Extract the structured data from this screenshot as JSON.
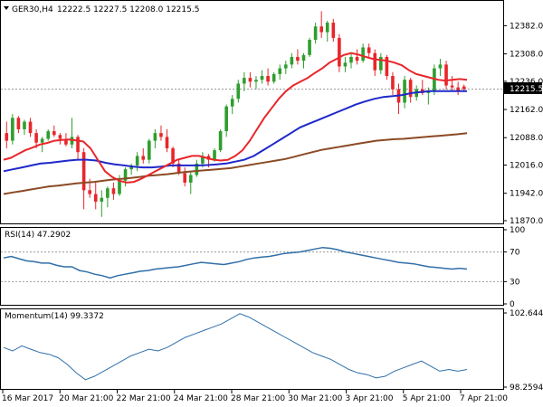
{
  "chart_data": {
    "instrument": "GER30,H4",
    "ohlc_text": "12222.5 12227.5 12208.0 12215.5",
    "current_price_label": "12215.5",
    "price_axis": {
      "ylim": [
        11870,
        12440
      ],
      "ticks": [
        "12382.0",
        "12308.0",
        "12236.0",
        "12162.0",
        "12088.0",
        "12016.0",
        "11942.0",
        "11870.0"
      ]
    },
    "x_labels": [
      "16 Mar 2017",
      "20 Mar 21:00",
      "22 Mar 21:00",
      "24 Mar 21:00",
      "28 Mar 21:00",
      "30 Mar 21:00",
      "3 Apr 21:00",
      "5 Apr 21:00",
      "7 Apr 21:00"
    ],
    "candles": [
      [
        12100,
        12130,
        12060,
        12080
      ],
      [
        12080,
        12150,
        12070,
        12140
      ],
      [
        12140,
        12145,
        12100,
        12110
      ],
      [
        12110,
        12135,
        12095,
        12130
      ],
      [
        12130,
        12140,
        12090,
        12100
      ],
      [
        12100,
        12110,
        12060,
        12075
      ],
      [
        12075,
        12090,
        12050,
        12085
      ],
      [
        12085,
        12110,
        12080,
        12105
      ],
      [
        12105,
        12120,
        12090,
        12095
      ],
      [
        12095,
        12100,
        12070,
        12085
      ],
      [
        12085,
        12100,
        12065,
        12070
      ],
      [
        12070,
        12140,
        12060,
        12090
      ],
      [
        12090,
        12095,
        12030,
        12050
      ],
      [
        12050,
        12060,
        11900,
        11950
      ],
      [
        11950,
        11980,
        11930,
        11940
      ],
      [
        11940,
        11970,
        11900,
        11920
      ],
      [
        11920,
        11950,
        11880,
        11930
      ],
      [
        11930,
        11960,
        11905,
        11955
      ],
      [
        11955,
        11970,
        11925,
        11940
      ],
      [
        11940,
        11990,
        11935,
        11975
      ],
      [
        11975,
        12010,
        11960,
        12005
      ],
      [
        12005,
        12020,
        11990,
        12015
      ],
      [
        12015,
        12050,
        12000,
        12040
      ],
      [
        12040,
        12060,
        12020,
        12030
      ],
      [
        12030,
        12085,
        12020,
        12080
      ],
      [
        12080,
        12110,
        12060,
        12100
      ],
      [
        12100,
        12120,
        12080,
        12090
      ],
      [
        12090,
        12110,
        12050,
        12060
      ],
      [
        12060,
        12065,
        12010,
        12020
      ],
      [
        12020,
        12030,
        11990,
        11995
      ],
      [
        11995,
        12010,
        11960,
        11970
      ],
      [
        11970,
        12000,
        11940,
        11990
      ],
      [
        11990,
        12030,
        11985,
        12020
      ],
      [
        12020,
        12050,
        12010,
        12040
      ],
      [
        12040,
        12045,
        12010,
        12030
      ],
      [
        12030,
        12060,
        12025,
        12055
      ],
      [
        12055,
        12110,
        12050,
        12105
      ],
      [
        12105,
        12175,
        12090,
        12170
      ],
      [
        12170,
        12200,
        12150,
        12190
      ],
      [
        12190,
        12240,
        12180,
        12230
      ],
      [
        12230,
        12260,
        12210,
        12245
      ],
      [
        12245,
        12260,
        12220,
        12235
      ],
      [
        12235,
        12250,
        12215,
        12240
      ],
      [
        12240,
        12265,
        12230,
        12250
      ],
      [
        12250,
        12270,
        12225,
        12235
      ],
      [
        12235,
        12260,
        12230,
        12255
      ],
      [
        12255,
        12280,
        12240,
        12270
      ],
      [
        12270,
        12290,
        12255,
        12280
      ],
      [
        12280,
        12310,
        12270,
        12300
      ],
      [
        12300,
        12320,
        12280,
        12290
      ],
      [
        12290,
        12310,
        12270,
        12305
      ],
      [
        12305,
        12350,
        12300,
        12345
      ],
      [
        12345,
        12390,
        12335,
        12380
      ],
      [
        12380,
        12420,
        12350,
        12365
      ],
      [
        12365,
        12395,
        12340,
        12390
      ],
      [
        12390,
        12400,
        12340,
        12350
      ],
      [
        12350,
        12360,
        12260,
        12275
      ],
      [
        12275,
        12300,
        12260,
        12285
      ],
      [
        12285,
        12310,
        12270,
        12300
      ],
      [
        12300,
        12320,
        12280,
        12290
      ],
      [
        12290,
        12335,
        12285,
        12325
      ],
      [
        12325,
        12335,
        12300,
        12310
      ],
      [
        12310,
        12320,
        12250,
        12265
      ],
      [
        12265,
        12310,
        12255,
        12300
      ],
      [
        12300,
        12305,
        12240,
        12250
      ],
      [
        12250,
        12260,
        12200,
        12215
      ],
      [
        12215,
        12230,
        12150,
        12180
      ],
      [
        12180,
        12250,
        12165,
        12240
      ],
      [
        12240,
        12245,
        12180,
        12195
      ],
      [
        12195,
        12225,
        12185,
        12215
      ],
      [
        12215,
        12240,
        12200,
        12205
      ],
      [
        12205,
        12220,
        12175,
        12210
      ],
      [
        12210,
        12280,
        12200,
        12270
      ],
      [
        12270,
        12295,
        12250,
        12280
      ],
      [
        12280,
        12290,
        12215,
        12225
      ],
      [
        12225,
        12250,
        12210,
        12220
      ],
      [
        12220,
        12235,
        12200,
        12210
      ],
      [
        12222.5,
        12227.5,
        12208,
        12215.5
      ]
    ],
    "moving_averages": {
      "fast_red": [
        12030,
        12035,
        12045,
        12055,
        12062,
        12070,
        12074,
        12080,
        12082,
        12083,
        12081,
        12078,
        12060,
        12030,
        12000,
        11985,
        11975,
        11970,
        11972,
        11980,
        11990,
        12000,
        12010,
        12020,
        12030,
        12035,
        12040,
        12040,
        12035,
        12030,
        12028,
        12030,
        12040,
        12055,
        12080,
        12110,
        12140,
        12165,
        12190,
        12210,
        12225,
        12235,
        12245,
        12258,
        12270,
        12285,
        12295,
        12305,
        12310,
        12306,
        12300,
        12295,
        12292,
        12290,
        12285,
        12278,
        12265,
        12255,
        12250,
        12245,
        12240,
        12238,
        12240,
        12242,
        12240
      ],
      "mid_blue": [
        12000,
        12005,
        12010,
        12015,
        12020,
        12022,
        12025,
        12028,
        12030,
        12030,
        12028,
        12022,
        12018,
        12015,
        12012,
        12010,
        12010,
        12012,
        12015,
        12015,
        12015,
        12015,
        12016,
        12018,
        12020,
        12025,
        12030,
        12040,
        12055,
        12070,
        12085,
        12100,
        12115,
        12125,
        12135,
        12145,
        12155,
        12165,
        12175,
        12183,
        12190,
        12195,
        12197,
        12200,
        12205,
        12208,
        12210,
        12210,
        12210,
        12210,
        12210
      ],
      "slow_brown": [
        11940,
        11944,
        11948,
        11952,
        11956,
        11960,
        11962,
        11965,
        11968,
        11970,
        11972,
        11975,
        11978,
        11980,
        11982,
        11985,
        11988,
        11990,
        11992,
        11995,
        11998,
        12000,
        12002,
        12004,
        12006,
        12008,
        12012,
        12016,
        12020,
        12024,
        12028,
        12032,
        12038,
        12044,
        12050,
        12056,
        12060,
        12064,
        12068,
        12072,
        12076,
        12080,
        12082,
        12084,
        12085,
        12087,
        12089,
        12091,
        12093,
        12095,
        12097,
        12100
      ]
    },
    "rsi": {
      "label": "RSI(14) 47.2902",
      "ylim": [
        0,
        100
      ],
      "ticks": [
        "100",
        "70",
        "30",
        "0"
      ],
      "levels": [
        70,
        30
      ],
      "values": [
        62,
        64,
        61,
        58,
        57,
        55,
        55,
        52,
        50,
        50,
        45,
        43,
        40,
        38,
        35,
        38,
        40,
        42,
        44,
        45,
        47,
        48,
        49,
        50,
        52,
        54,
        56,
        55,
        54,
        53,
        55,
        57,
        60,
        62,
        63,
        64,
        66,
        68,
        69,
        70,
        72,
        74,
        76,
        75,
        73,
        70,
        68,
        66,
        64,
        62,
        60,
        58,
        56,
        55,
        54,
        52,
        50,
        49,
        48,
        47,
        48,
        47
      ]
    },
    "momentum": {
      "label": "Momentum(14) 99.3372",
      "ylim": [
        98.2594,
        102.6448
      ],
      "ticks": [
        "102.6448",
        "98.2594"
      ],
      "values": [
        100.6,
        100.4,
        100.7,
        100.5,
        100.3,
        100.2,
        100.0,
        99.6,
        99.1,
        98.7,
        98.9,
        99.2,
        99.5,
        99.8,
        100.1,
        100.3,
        100.5,
        100.4,
        100.6,
        100.9,
        101.2,
        101.4,
        101.6,
        101.8,
        102.0,
        102.3,
        102.6,
        102.4,
        102.1,
        101.8,
        101.5,
        101.2,
        100.9,
        100.6,
        100.3,
        100.1,
        99.9,
        99.6,
        99.3,
        99.1,
        99.0,
        98.8,
        98.9,
        99.2,
        99.4,
        99.6,
        99.8,
        99.5,
        99.2,
        99.3,
        99.2,
        99.3
      ]
    },
    "colors": {
      "bull": "#2e9e2e",
      "bear": "#e8262b",
      "ma_fast": "#e8262b",
      "ma_mid": "#1f28c9",
      "ma_slow": "#8b4a25",
      "indicator": "#2f6fa8",
      "grid": "#7a7a7a",
      "dotted": "#9a9a9a"
    }
  }
}
